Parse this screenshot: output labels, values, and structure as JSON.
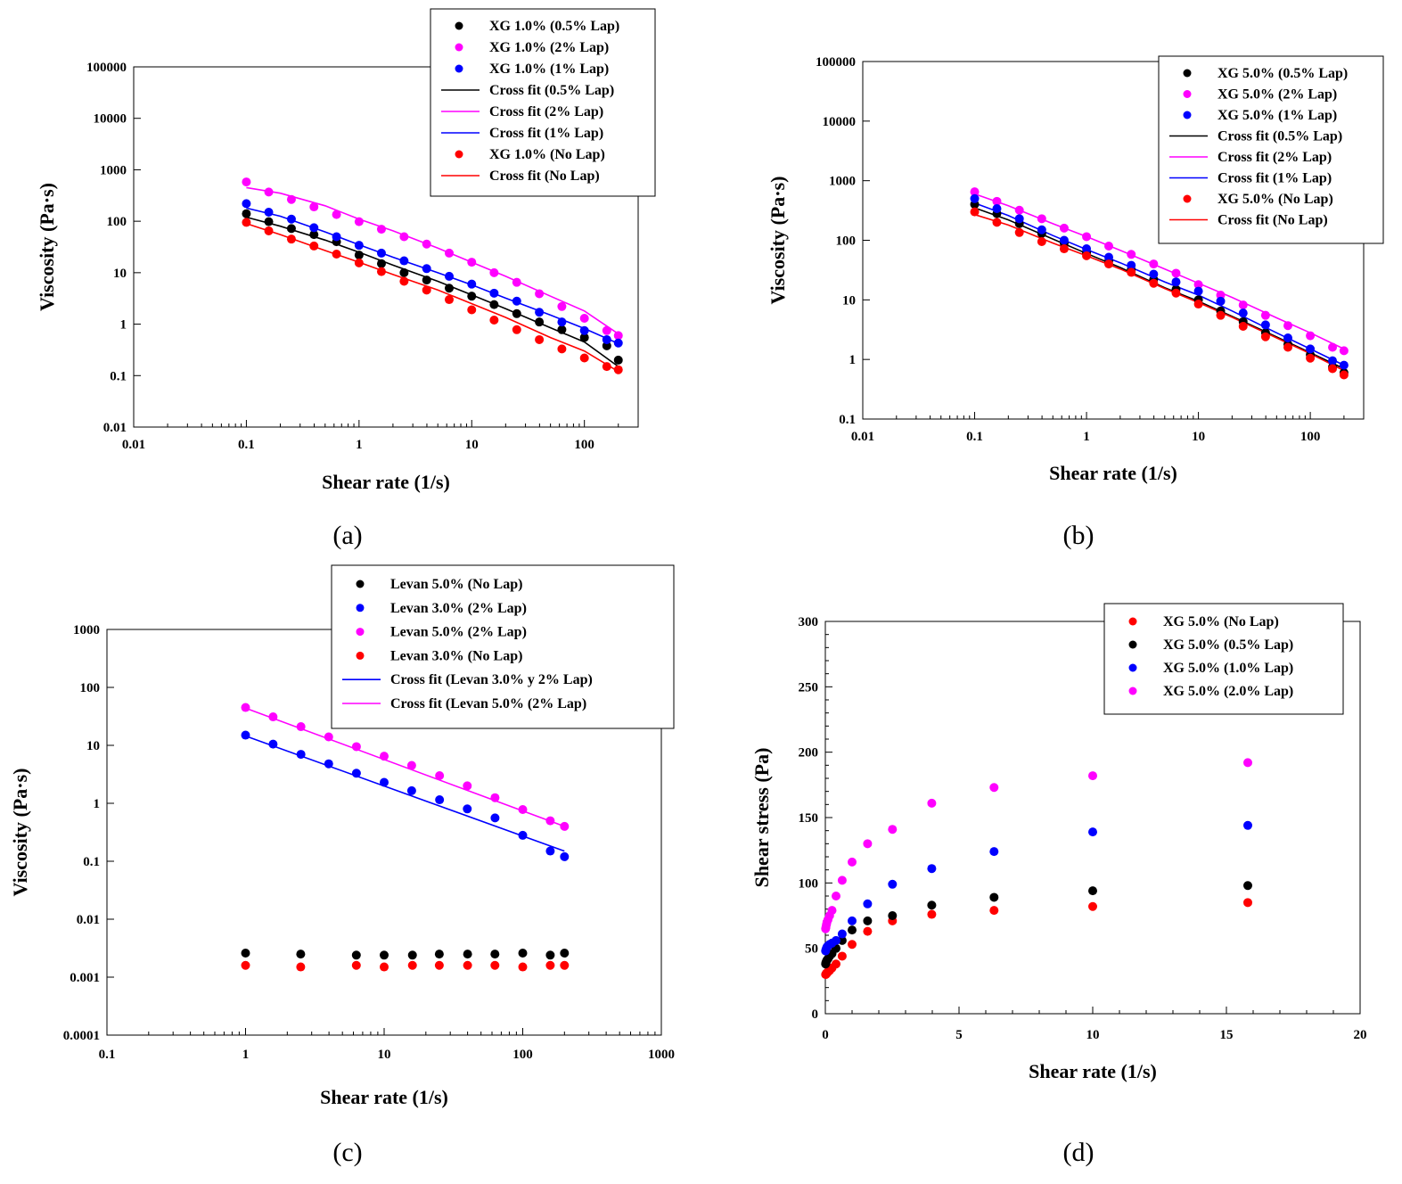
{
  "figure": {
    "captions": [
      "(a)",
      "(b)",
      "(c)",
      "(d)"
    ]
  },
  "chart_data": [
    {
      "panel": "a",
      "type": "scatter",
      "scale": "log-log",
      "xlabel": "Shear rate (1/s)",
      "ylabel": "Viscosity (Pa·s)",
      "xlim": [
        0.01,
        300
      ],
      "ylim": [
        0.01,
        100000
      ],
      "xticks": [
        "0.01",
        "0.1",
        "1",
        "10",
        "100"
      ],
      "yticks": [
        "0.01",
        "0.1",
        "1",
        "10",
        "100",
        "1000",
        "10000",
        "100000"
      ],
      "legend_position": "top-right",
      "series": [
        {
          "name": "XG 1.0% (0.5% Lap)",
          "kind": "points",
          "color": "#000000",
          "x": [
            0.1,
            0.158,
            0.251,
            0.398,
            0.631,
            1.0,
            1.58,
            2.51,
            3.98,
            6.31,
            10,
            15.8,
            25.1,
            39.8,
            63.1,
            100,
            158,
            200
          ],
          "y": [
            140,
            98,
            72,
            55,
            40,
            22,
            15,
            10,
            7.2,
            5.0,
            3.5,
            2.4,
            1.6,
            1.1,
            0.78,
            0.55,
            0.38,
            0.2
          ]
        },
        {
          "name": "XG 1.0% (2% Lap)",
          "kind": "points",
          "color": "#ff00ff",
          "x": [
            0.1,
            0.158,
            0.251,
            0.398,
            0.631,
            1.0,
            1.58,
            2.51,
            3.98,
            6.31,
            10,
            15.8,
            25.1,
            39.8,
            63.1,
            100,
            158,
            200
          ],
          "y": [
            580,
            370,
            265,
            190,
            135,
            98,
            70,
            50,
            36,
            24,
            16,
            10,
            6.5,
            3.9,
            2.2,
            1.3,
            0.75,
            0.6
          ]
        },
        {
          "name": "XG 1.0% (1% Lap)",
          "kind": "points",
          "color": "#0000ff",
          "x": [
            0.1,
            0.158,
            0.251,
            0.398,
            0.631,
            1.0,
            1.58,
            2.51,
            3.98,
            6.31,
            10,
            15.8,
            25.1,
            39.8,
            63.1,
            100,
            158,
            200
          ],
          "y": [
            220,
            150,
            110,
            75,
            50,
            34,
            24,
            17,
            12,
            8.5,
            6.0,
            4.0,
            2.8,
            1.7,
            1.1,
            0.75,
            0.5,
            0.43
          ]
        },
        {
          "name": "Cross fit (0.5% Lap)",
          "kind": "line",
          "color": "#000000",
          "x": [
            0.1,
            0.2,
            0.5,
            1,
            2,
            5,
            10,
            20,
            50,
            100,
            200
          ],
          "y": [
            120,
            80,
            43,
            25,
            14,
            6.8,
            3.7,
            2.0,
            0.85,
            0.45,
            0.15
          ]
        },
        {
          "name": "Cross fit (2% Lap)",
          "kind": "line",
          "color": "#ff00ff",
          "x": [
            0.1,
            0.2,
            0.5,
            1,
            2,
            5,
            10,
            20,
            50,
            100,
            200
          ],
          "y": [
            450,
            350,
            200,
            110,
            65,
            30,
            16,
            8.5,
            3.5,
            1.8,
            0.65
          ]
        },
        {
          "name": "Cross fit (1% Lap)",
          "kind": "line",
          "color": "#0000ff",
          "x": [
            0.1,
            0.2,
            0.5,
            1,
            2,
            5,
            10,
            20,
            50,
            100,
            200
          ],
          "y": [
            180,
            125,
            62,
            35,
            20,
            10,
            5.8,
            3.2,
            1.5,
            0.82,
            0.42
          ]
        },
        {
          "name": "XG 1.0% (No Lap)",
          "kind": "points",
          "color": "#ff0000",
          "x": [
            0.1,
            0.158,
            0.251,
            0.398,
            0.631,
            1.0,
            1.58,
            2.51,
            3.98,
            6.31,
            10,
            15.8,
            25.1,
            39.8,
            63.1,
            100,
            158,
            200
          ],
          "y": [
            95,
            65,
            45,
            33,
            23,
            15.5,
            10.5,
            6.8,
            4.6,
            3.0,
            1.9,
            1.2,
            0.78,
            0.5,
            0.33,
            0.22,
            0.15,
            0.13
          ]
        },
        {
          "name": "Cross fit (No Lap)",
          "kind": "line",
          "color": "#ff0000",
          "x": [
            0.1,
            0.2,
            0.5,
            1,
            2,
            5,
            10,
            20,
            50,
            100,
            200
          ],
          "y": [
            90,
            55,
            27,
            16,
            9.2,
            4.6,
            2.5,
            1.35,
            0.55,
            0.3,
            0.12
          ]
        }
      ]
    },
    {
      "panel": "b",
      "type": "scatter",
      "scale": "log-log",
      "xlabel": "Shear rate (1/s)",
      "ylabel": "Viscosity (Pa·s)",
      "xlim": [
        0.01,
        300
      ],
      "ylim": [
        0.1,
        100000
      ],
      "xticks": [
        "0.01",
        "0.1",
        "1",
        "10",
        "100"
      ],
      "yticks": [
        "0.1",
        "1",
        "10",
        "100",
        "1000",
        "10000",
        "100000"
      ],
      "legend_position": "top-right",
      "series": [
        {
          "name": "XG 5.0% (0.5% Lap)",
          "kind": "points",
          "color": "#000000",
          "x": [
            0.1,
            0.158,
            0.251,
            0.398,
            0.631,
            1.0,
            1.58,
            2.51,
            3.98,
            6.31,
            10,
            15.8,
            25.1,
            39.8,
            63.1,
            100,
            158,
            200
          ],
          "y": [
            400,
            280,
            190,
            130,
            90,
            62,
            45,
            32,
            22,
            15,
            10,
            6.5,
            4.3,
            2.8,
            1.8,
            1.2,
            0.75,
            0.6
          ]
        },
        {
          "name": "XG 5.0% (2% Lap)",
          "kind": "points",
          "color": "#ff00ff",
          "x": [
            0.1,
            0.158,
            0.251,
            0.398,
            0.631,
            1.0,
            1.58,
            2.51,
            3.98,
            6.31,
            10,
            15.8,
            25.1,
            39.8,
            63.1,
            100,
            158,
            200
          ],
          "y": [
            650,
            450,
            320,
            230,
            160,
            115,
            80,
            58,
            40,
            28,
            18,
            12,
            8.2,
            5.5,
            3.7,
            2.5,
            1.6,
            1.4
          ]
        },
        {
          "name": "XG 5.0% (1% Lap)",
          "kind": "points",
          "color": "#0000ff",
          "x": [
            0.1,
            0.158,
            0.251,
            0.398,
            0.631,
            1.0,
            1.58,
            2.51,
            3.98,
            6.31,
            10,
            15.8,
            25.1,
            39.8,
            63.1,
            100,
            158,
            200
          ],
          "y": [
            500,
            340,
            230,
            150,
            100,
            72,
            52,
            38,
            27,
            20,
            14,
            9.5,
            6.0,
            3.8,
            2.3,
            1.5,
            0.95,
            0.8
          ]
        },
        {
          "name": "Cross fit (0.5% Lap)",
          "kind": "line",
          "color": "#000000",
          "x": [
            0.1,
            0.2,
            0.5,
            1,
            2,
            5,
            10,
            20,
            50,
            100,
            200
          ],
          "y": [
            350,
            220,
            105,
            60,
            35,
            16,
            9.5,
            5.3,
            2.4,
            1.3,
            0.7
          ]
        },
        {
          "name": "Cross fit (2% Lap)",
          "kind": "line",
          "color": "#ff00ff",
          "x": [
            0.1,
            0.2,
            0.5,
            1,
            2,
            5,
            10,
            20,
            50,
            100,
            200
          ],
          "y": [
            600,
            380,
            190,
            115,
            68,
            33,
            19,
            11,
            5.0,
            2.8,
            1.5
          ]
        },
        {
          "name": "Cross fit (1% Lap)",
          "kind": "line",
          "color": "#0000ff",
          "x": [
            0.1,
            0.2,
            0.5,
            1,
            2,
            5,
            10,
            20,
            50,
            100,
            200
          ],
          "y": [
            420,
            260,
            120,
            70,
            42,
            20,
            12,
            6.5,
            2.8,
            1.5,
            0.8
          ]
        },
        {
          "name": "XG 5.0% (No Lap)",
          "kind": "points",
          "color": "#ff0000",
          "x": [
            0.1,
            0.158,
            0.251,
            0.398,
            0.631,
            1.0,
            1.58,
            2.51,
            3.98,
            6.31,
            10,
            15.8,
            25.1,
            39.8,
            63.1,
            100,
            158,
            200
          ],
          "y": [
            300,
            200,
            135,
            95,
            72,
            55,
            40,
            29,
            19,
            13,
            8.5,
            5.5,
            3.6,
            2.4,
            1.6,
            1.05,
            0.7,
            0.55
          ]
        },
        {
          "name": "Cross fit (No Lap)",
          "kind": "line",
          "color": "#ff0000",
          "x": [
            0.1,
            0.2,
            0.5,
            1,
            2,
            5,
            10,
            20,
            50,
            100,
            200
          ],
          "y": [
            270,
            180,
            90,
            55,
            33,
            15.5,
            9.0,
            5.1,
            2.3,
            1.25,
            0.65
          ]
        }
      ]
    },
    {
      "panel": "c",
      "type": "scatter",
      "scale": "log-log",
      "xlabel": "Shear rate (1/s)",
      "ylabel": "Viscosity (Pa·s)",
      "xlim": [
        0.1,
        1000
      ],
      "ylim": [
        0.0001,
        1000
      ],
      "xticks": [
        "0.1",
        "1",
        "10",
        "100",
        "1000"
      ],
      "yticks": [
        "0.0001",
        "0.001",
        "0.01",
        "0.1",
        "1",
        "10",
        "100",
        "1000"
      ],
      "legend_position": "top-right",
      "series": [
        {
          "name": "Levan 5.0% (No Lap)",
          "kind": "points",
          "color": "#000000",
          "x": [
            1,
            2.5,
            6.3,
            10,
            16,
            25,
            40,
            63,
            100,
            158,
            200
          ],
          "y": [
            0.0026,
            0.0025,
            0.0024,
            0.0024,
            0.0024,
            0.0025,
            0.0025,
            0.0025,
            0.0026,
            0.0024,
            0.0026
          ]
        },
        {
          "name": "Levan 3.0% (2% Lap)",
          "kind": "points",
          "color": "#0000ff",
          "x": [
            1,
            1.58,
            2.51,
            3.98,
            6.31,
            10,
            15.8,
            25.1,
            39.8,
            63.1,
            100,
            158,
            200
          ],
          "y": [
            15,
            10.5,
            7.0,
            4.8,
            3.3,
            2.3,
            1.65,
            1.15,
            0.8,
            0.56,
            0.28,
            0.15,
            0.12
          ]
        },
        {
          "name": "Levan 5.0% (2% Lap)",
          "kind": "points",
          "color": "#ff00ff",
          "x": [
            1,
            1.58,
            2.51,
            3.98,
            6.31,
            10,
            15.8,
            25.1,
            39.8,
            63.1,
            100,
            158,
            200
          ],
          "y": [
            45,
            31,
            21,
            14,
            9.5,
            6.5,
            4.5,
            3.0,
            2.0,
            1.25,
            0.78,
            0.5,
            0.4
          ]
        },
        {
          "name": "Levan 3.0% (No Lap)",
          "kind": "points",
          "color": "#ff0000",
          "x": [
            1,
            2.5,
            6.3,
            10,
            16,
            25,
            40,
            63,
            100,
            158,
            200
          ],
          "y": [
            0.0016,
            0.0015,
            0.0016,
            0.0015,
            0.0016,
            0.0016,
            0.0016,
            0.0016,
            0.0015,
            0.0016,
            0.0016
          ]
        },
        {
          "name": "Cross fit (Levan 3.0% y 2% Lap)",
          "kind": "line",
          "color": "#0000ff",
          "x": [
            1,
            200
          ],
          "y": [
            14.5,
            0.15
          ]
        },
        {
          "name": "Cross fit (Levan 5.0% (2% Lap)",
          "kind": "line",
          "color": "#ff00ff",
          "x": [
            1,
            200
          ],
          "y": [
            44,
            0.4
          ]
        }
      ]
    },
    {
      "panel": "d",
      "type": "scatter",
      "scale": "linear",
      "xlabel": "Shear rate (1/s)",
      "ylabel": "Shear stress (Pa)",
      "xlim": [
        0,
        20
      ],
      "ylim": [
        0,
        300
      ],
      "xticks": [
        "0",
        "5",
        "10",
        "15",
        "20"
      ],
      "yticks": [
        "0",
        "50",
        "100",
        "150",
        "200",
        "250",
        "300"
      ],
      "legend_position": "top-right",
      "series": [
        {
          "name": "XG 5.0% (No Lap)",
          "kind": "points",
          "color": "#ff0000",
          "x": [
            0.01,
            0.02,
            0.04,
            0.06,
            0.1,
            0.16,
            0.25,
            0.4,
            0.63,
            1.0,
            1.58,
            2.51,
            3.98,
            6.31,
            10,
            15.8
          ],
          "y": [
            30,
            30,
            31,
            31,
            32,
            33,
            35,
            38,
            44,
            53,
            63,
            71,
            76,
            79,
            82,
            85
          ]
        },
        {
          "name": "XG 5.0% (0.5% Lap)",
          "kind": "points",
          "color": "#000000",
          "x": [
            0.01,
            0.02,
            0.04,
            0.06,
            0.1,
            0.16,
            0.25,
            0.4,
            0.63,
            1.0,
            1.58,
            2.51,
            3.98,
            6.31,
            10,
            15.8
          ],
          "y": [
            38,
            39,
            40,
            41,
            42,
            44,
            46,
            50,
            56,
            64,
            71,
            75,
            83,
            89,
            94,
            98
          ]
        },
        {
          "name": "XG 5.0% (1.0% Lap)",
          "kind": "points",
          "color": "#0000ff",
          "x": [
            0.01,
            0.02,
            0.04,
            0.06,
            0.1,
            0.16,
            0.25,
            0.4,
            0.63,
            1.0,
            1.58,
            2.51,
            3.98,
            6.31,
            10,
            15.8
          ],
          "y": [
            48,
            49,
            50,
            51,
            52,
            53,
            54,
            56,
            61,
            71,
            84,
            99,
            111,
            124,
            139,
            144
          ]
        },
        {
          "name": "XG 5.0% (2.0% Lap)",
          "kind": "points",
          "color": "#ff00ff",
          "x": [
            0.01,
            0.02,
            0.04,
            0.06,
            0.1,
            0.16,
            0.25,
            0.4,
            0.63,
            1.0,
            1.58,
            2.51,
            3.98,
            6.31,
            10,
            15.8
          ],
          "y": [
            65,
            66,
            68,
            70,
            72,
            75,
            79,
            90,
            102,
            116,
            130,
            141,
            161,
            173,
            182,
            192
          ]
        }
      ]
    }
  ]
}
